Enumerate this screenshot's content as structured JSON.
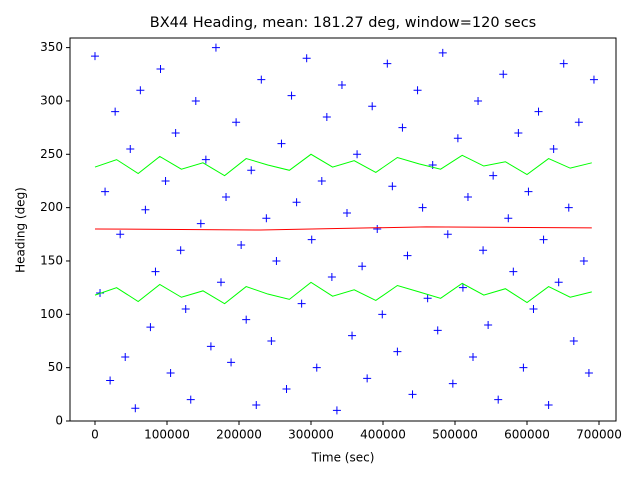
{
  "chart_data": {
    "type": "scatter",
    "title": "BX44 Heading, mean: 181.27 deg, window=120 secs",
    "xlabel": "Time (sec)",
    "ylabel": "Heading (deg)",
    "xlim": [
      -34700,
      723600
    ],
    "ylim": [
      0,
      359
    ],
    "xticks": [
      0,
      100000,
      200000,
      300000,
      400000,
      500000,
      600000,
      700000
    ],
    "yticks": [
      0,
      50,
      100,
      150,
      200,
      250,
      300,
      350
    ],
    "grid": false,
    "series": [
      {
        "color": "#0000ff",
        "marker": "+",
        "x": [
          0,
          7000,
          14000,
          21000,
          28000,
          35000,
          42000,
          49000,
          56000,
          63000,
          70000,
          77000,
          84000,
          91000,
          98000,
          105000,
          112000,
          119000,
          126000,
          133000,
          140000,
          147000,
          154000,
          161000,
          168000,
          175000,
          182000,
          189000,
          196000,
          203000,
          210000,
          217000,
          224000,
          231000,
          238000,
          245000,
          252000,
          259000,
          266000,
          273000,
          280000,
          287000,
          294000,
          301000,
          308000,
          315000,
          322000,
          329000,
          336000,
          343000,
          350000,
          357000,
          364000,
          371000,
          378000,
          385000,
          392000,
          399000,
          406000,
          413000,
          420000,
          427000,
          434000,
          441000,
          448000,
          455000,
          462000,
          469000,
          476000,
          483000,
          490000,
          497000,
          504000,
          511000,
          518000,
          525000,
          532000,
          539000,
          546000,
          553000,
          560000,
          567000,
          574000,
          581000,
          588000,
          595000,
          602000,
          609000,
          616000,
          623000,
          630000,
          637000,
          644000,
          651000,
          658000,
          665000,
          672000,
          679000,
          686000,
          693000
        ],
        "values": [
          342,
          120,
          215,
          38,
          290,
          175,
          60,
          255,
          12,
          310,
          198,
          88,
          140,
          330,
          225,
          45,
          270,
          160,
          105,
          20,
          300,
          185,
          245,
          70,
          350,
          130,
          210,
          55,
          280,
          165,
          95,
          235,
          15,
          320,
          190,
          75,
          150,
          260,
          30,
          305,
          205,
          110,
          340,
          170,
          50,
          225,
          285,
          135,
          10,
          315,
          195,
          80,
          250,
          145,
          40,
          295,
          180,
          100,
          335,
          220,
          65,
          275,
          155,
          25,
          310,
          200,
          115,
          240,
          85,
          345,
          175,
          35,
          265,
          125,
          210,
          60,
          300,
          160,
          90,
          230,
          20,
          325,
          190,
          140,
          270,
          50,
          215,
          105,
          290,
          170,
          15,
          255,
          130,
          335,
          200,
          75,
          280,
          150,
          45,
          320
        ]
      },
      {
        "color": "#00ff00",
        "marker": "line",
        "x": [
          0,
          30000,
          60000,
          90000,
          120000,
          150000,
          180000,
          210000,
          240000,
          270000,
          300000,
          330000,
          360000,
          390000,
          420000,
          450000,
          480000,
          510000,
          540000,
          570000,
          600000,
          630000,
          660000,
          690000
        ],
        "values": [
          238,
          245,
          232,
          248,
          236,
          242,
          230,
          246,
          240,
          235,
          250,
          238,
          244,
          233,
          247,
          241,
          236,
          249,
          239,
          243,
          231,
          246,
          237,
          242
        ]
      },
      {
        "color": "#00ff00",
        "marker": "line",
        "x": [
          0,
          30000,
          60000,
          90000,
          120000,
          150000,
          180000,
          210000,
          240000,
          270000,
          300000,
          330000,
          360000,
          390000,
          420000,
          450000,
          480000,
          510000,
          540000,
          570000,
          600000,
          630000,
          660000,
          690000
        ],
        "values": [
          118,
          125,
          112,
          128,
          116,
          122,
          110,
          126,
          119,
          114,
          130,
          117,
          123,
          113,
          127,
          121,
          115,
          129,
          118,
          124,
          111,
          126,
          116,
          121
        ]
      },
      {
        "color": "#ff0000",
        "marker": "line",
        "x": [
          0,
          230000,
          460000,
          690000
        ],
        "values": [
          180,
          179,
          182,
          181
        ]
      }
    ]
  }
}
